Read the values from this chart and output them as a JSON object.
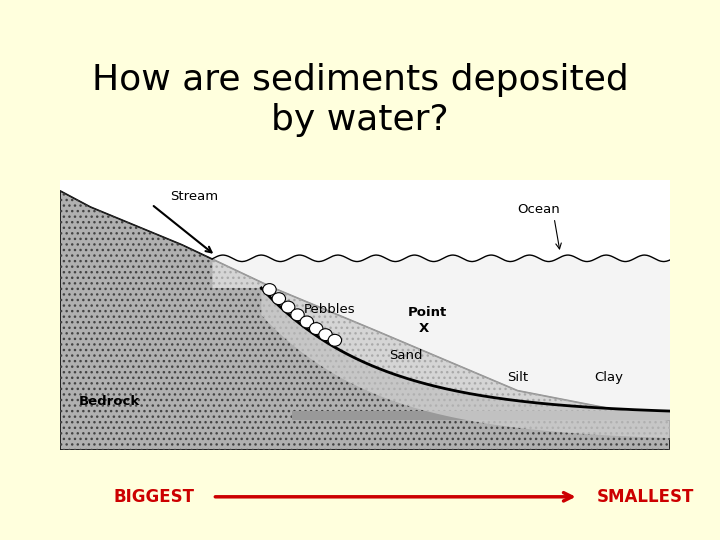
{
  "background_color": "#FFFFDD",
  "title_line1": "How are sediments deposited",
  "title_line2": "by water?",
  "title_fontsize": 26,
  "title_color": "#000000",
  "biggest_label": "BIGGEST",
  "smallest_label": "SMALLEST",
  "arrow_color": "#CC0000",
  "label_color": "#CC0000",
  "label_fontsize": 12,
  "diagram_bg": "#FFFFFF",
  "bedrock_color": "#888888",
  "sediment_light": "#CCCCCC",
  "sediment_lighter": "#DDDDDD",
  "water_color": "#F5F5F5"
}
